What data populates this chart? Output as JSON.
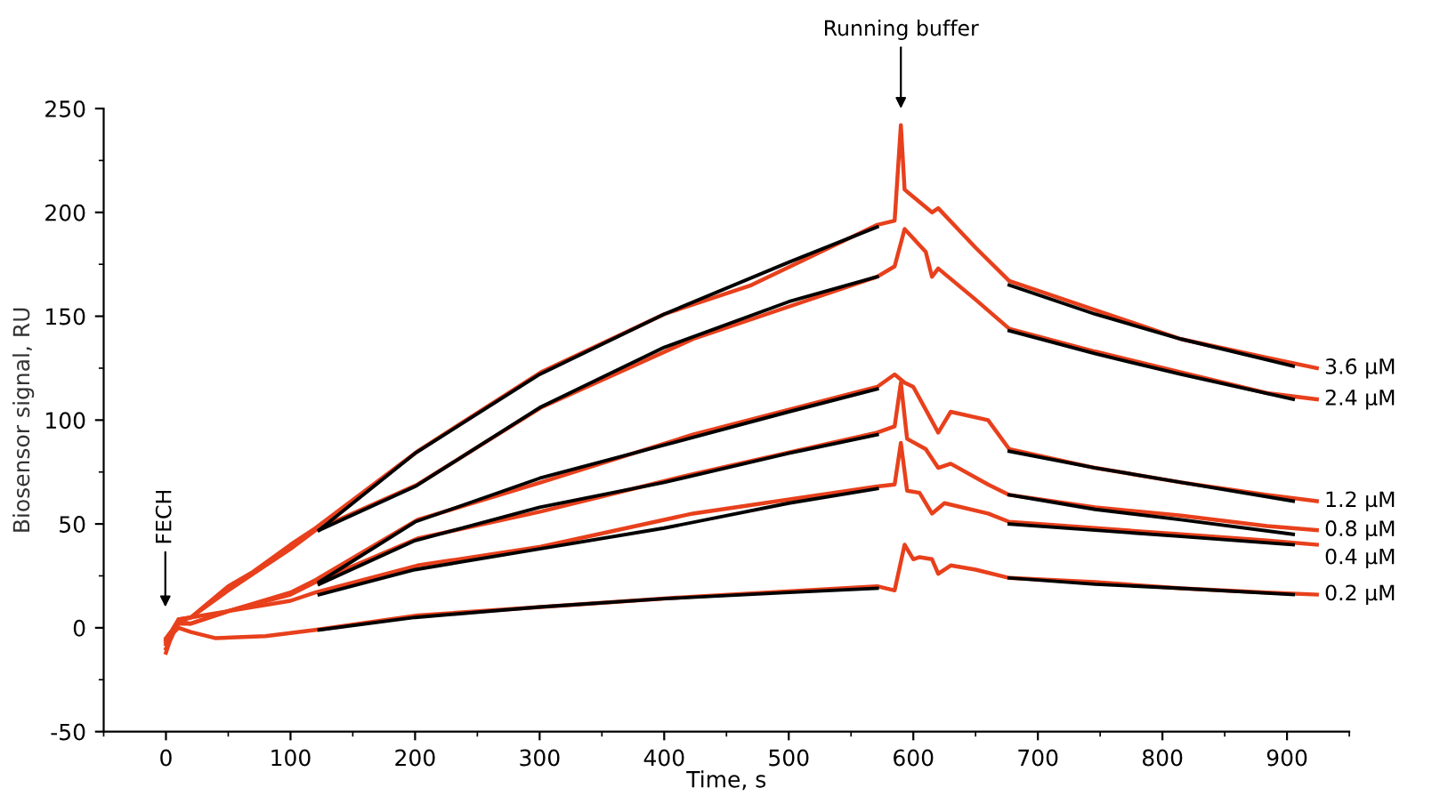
{
  "chart_data": {
    "type": "line",
    "xlabel": "Time, s",
    "ylabel": "Biosensor signal, RU",
    "xlim": [
      -50,
      950
    ],
    "ylim": [
      -50,
      250
    ],
    "xticks": [
      0,
      100,
      200,
      300,
      400,
      500,
      600,
      700,
      800,
      900
    ],
    "yticks": [
      -50,
      0,
      50,
      100,
      150,
      200,
      250
    ],
    "grid": false,
    "legend": false,
    "marker": "none",
    "line_style": "solid",
    "annotations": [
      "FECH",
      "Running buffer"
    ],
    "series": [
      {
        "name": "3.6 μM",
        "color": "#e8401c",
        "x": [
          0,
          5,
          10,
          20,
          50,
          70,
          100,
          120,
          202,
          301,
          400,
          470,
          571,
          585,
          590,
          593,
          615,
          620,
          650,
          677,
          746,
          815,
          884,
          924
        ],
        "values": [
          -8,
          -3,
          4,
          5,
          20,
          27,
          40,
          48,
          85,
          123,
          151,
          165,
          194,
          196,
          242,
          211,
          200,
          202,
          183,
          167,
          153,
          139,
          130,
          125
        ]
      },
      {
        "name": "2.4 μM",
        "color": "#e8401c",
        "x": [
          0,
          5,
          10,
          20,
          50,
          70,
          100,
          120,
          202,
          301,
          423,
          571,
          585,
          593,
          610,
          615,
          620,
          650,
          677,
          746,
          815,
          884,
          924
        ],
        "values": [
          -10,
          -4,
          3,
          5,
          18,
          26,
          38,
          47,
          69,
          106,
          139,
          169,
          174,
          192,
          181,
          169,
          173,
          158,
          144,
          133,
          123,
          113,
          110
        ]
      },
      {
        "name": "1.2 μM",
        "color": "#e8401c",
        "x": [
          0,
          5,
          10,
          20,
          50,
          100,
          120,
          202,
          301,
          423,
          571,
          585,
          593,
          600,
          610,
          620,
          630,
          660,
          677,
          746,
          815,
          884,
          924
        ],
        "values": [
          -6,
          -2,
          3,
          2,
          8,
          17,
          23,
          52,
          70,
          93,
          116,
          122,
          118,
          116,
          105,
          94,
          104,
          100,
          86,
          77,
          70,
          64,
          61
        ]
      },
      {
        "name": "0.8 μM",
        "color": "#e8401c",
        "x": [
          0,
          5,
          10,
          20,
          50,
          100,
          120,
          202,
          301,
          423,
          571,
          585,
          590,
          595,
          610,
          620,
          630,
          660,
          677,
          746,
          815,
          884,
          924
        ],
        "values": [
          -7,
          -3,
          2,
          2,
          8,
          16,
          22,
          43,
          56,
          74,
          94,
          97,
          118,
          91,
          86,
          77,
          79,
          69,
          64,
          58,
          54,
          49,
          47
        ]
      },
      {
        "name": "0.4 μM",
        "color": "#e8401c",
        "x": [
          0,
          5,
          10,
          20,
          60,
          100,
          120,
          202,
          301,
          423,
          571,
          585,
          590,
          595,
          605,
          615,
          625,
          660,
          677,
          746,
          815,
          884,
          924
        ],
        "values": [
          -5,
          -1,
          4,
          5,
          9,
          13,
          17,
          30,
          39,
          55,
          68,
          69,
          89,
          66,
          65,
          55,
          60,
          55,
          51,
          48,
          45,
          42,
          40
        ]
      },
      {
        "name": "0.2 μM",
        "color": "#e8401c",
        "x": [
          0,
          5,
          10,
          20,
          40,
          80,
          120,
          202,
          301,
          423,
          571,
          585,
          593,
          600,
          605,
          615,
          620,
          630,
          650,
          677,
          746,
          815,
          884,
          924
        ],
        "values": [
          -12,
          -3,
          0,
          -2,
          -5,
          -4,
          -1,
          6,
          10,
          15,
          20,
          18,
          40,
          33,
          34,
          33,
          26,
          30,
          28,
          24,
          22,
          19,
          17,
          16
        ]
      },
      {
        "color": "#000000",
        "x": [
          123,
          200,
          300,
          400,
          500,
          571
        ],
        "values": [
          47,
          84,
          122,
          151,
          176,
          193
        ]
      },
      {
        "color": "#000000",
        "x": [
          123,
          200,
          300,
          400,
          500,
          571
        ],
        "values": [
          47,
          68,
          106,
          135,
          157,
          169
        ]
      },
      {
        "color": "#000000",
        "x": [
          123,
          200,
          300,
          400,
          500,
          571
        ],
        "values": [
          22,
          51,
          72,
          88,
          104,
          115
        ]
      },
      {
        "color": "#000000",
        "x": [
          123,
          200,
          300,
          400,
          500,
          571
        ],
        "values": [
          21,
          42,
          58,
          70,
          84,
          93
        ]
      },
      {
        "color": "#000000",
        "x": [
          123,
          200,
          300,
          400,
          500,
          571
        ],
        "values": [
          16,
          28,
          38,
          48,
          60,
          67
        ]
      },
      {
        "color": "#000000",
        "x": [
          123,
          200,
          300,
          400,
          500,
          571
        ],
        "values": [
          -1,
          5,
          10,
          14,
          17,
          19
        ]
      },
      {
        "color": "#000000",
        "x": [
          677,
          746,
          815,
          905
        ],
        "values": [
          165,
          151,
          139,
          126
        ]
      },
      {
        "color": "#000000",
        "x": [
          677,
          746,
          815,
          905
        ],
        "values": [
          143,
          132,
          122,
          110
        ]
      },
      {
        "color": "#000000",
        "x": [
          677,
          746,
          815,
          905
        ],
        "values": [
          85,
          77,
          70,
          61
        ]
      },
      {
        "color": "#000000",
        "x": [
          677,
          746,
          815,
          905
        ],
        "values": [
          64,
          57,
          52,
          45
        ]
      },
      {
        "color": "#000000",
        "x": [
          677,
          746,
          815,
          905
        ],
        "values": [
          50,
          47,
          44,
          40
        ]
      },
      {
        "color": "#000000",
        "x": [
          677,
          746,
          815,
          905
        ],
        "values": [
          24,
          21,
          19,
          16
        ]
      }
    ]
  }
}
